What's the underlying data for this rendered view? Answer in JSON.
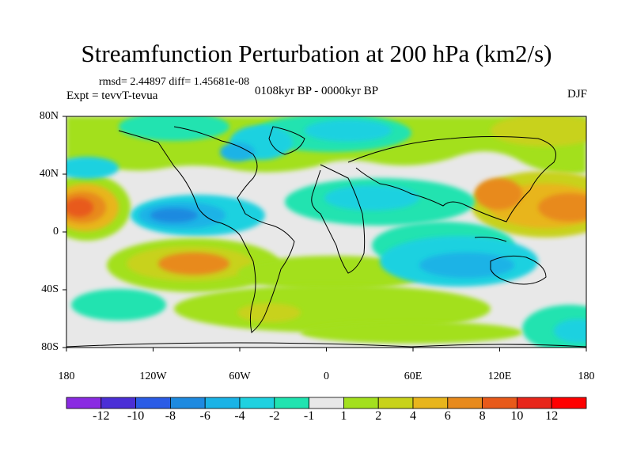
{
  "title": "Streamfunction Perturbation at 200 hPa (km2/s)",
  "stats_line": "rmsd= 2.44897 diff= 1.45681e-08",
  "experiment": "Expt = tevvT-tevua",
  "period": "0108kyr BP - 0000kyr BP",
  "season": "DJF",
  "lat_labels": [
    "80N",
    "40N",
    "0",
    "40S",
    "80S"
  ],
  "lon_labels": [
    "180",
    "120W",
    "60W",
    "0",
    "60E",
    "120E",
    "180"
  ],
  "colorbar": {
    "labels": [
      "-12",
      "-10",
      "-8",
      "-6",
      "-4",
      "-2",
      "-1",
      "1",
      "2",
      "4",
      "6",
      "8",
      "10",
      "12"
    ],
    "colors": [
      "#8a2be2",
      "#4b2fd6",
      "#2b5ce6",
      "#1e8ae0",
      "#1ab3e6",
      "#1fd1e0",
      "#20e3b0",
      "#e8e8e8",
      "#a3e01e",
      "#c8d21a",
      "#e8b51c",
      "#e88a1c",
      "#e85a1a",
      "#e8261a",
      "#ff0000"
    ]
  }
}
